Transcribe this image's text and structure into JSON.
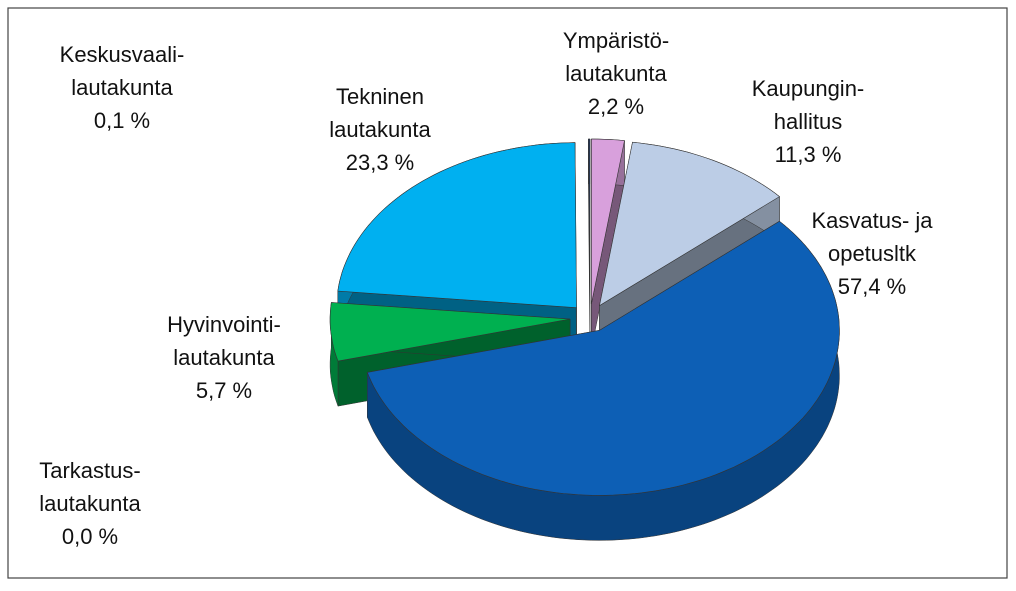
{
  "chart_data": {
    "type": "pie3d",
    "categories": [
      [
        "Ympäristö-",
        "lautakunta"
      ],
      [
        "Kaupungin-",
        "hallitus"
      ],
      [
        "Kasvatus- ja",
        "opetusltk"
      ],
      [
        "Tarkastus-",
        "lautakunta"
      ],
      [
        "Hyvinvointi-",
        "lautakunta"
      ],
      [
        "Tekninen",
        "lautakunta"
      ],
      [
        "Keskusvaali-",
        "lautakunta"
      ]
    ],
    "values": [
      2.2,
      11.3,
      57.4,
      0.0,
      5.7,
      23.3,
      0.1
    ],
    "value_labels": [
      "2,2 %",
      "11,3 %",
      "57,4 %",
      "0,0 %",
      "5,7 %",
      "23,3 %",
      "0,1 %"
    ],
    "colors": [
      "#d8a0dc",
      "#bccde6",
      "#0d5fb5",
      "#7f7f7f",
      "#00b050",
      "#00b0f0",
      "#1f3864"
    ]
  }
}
